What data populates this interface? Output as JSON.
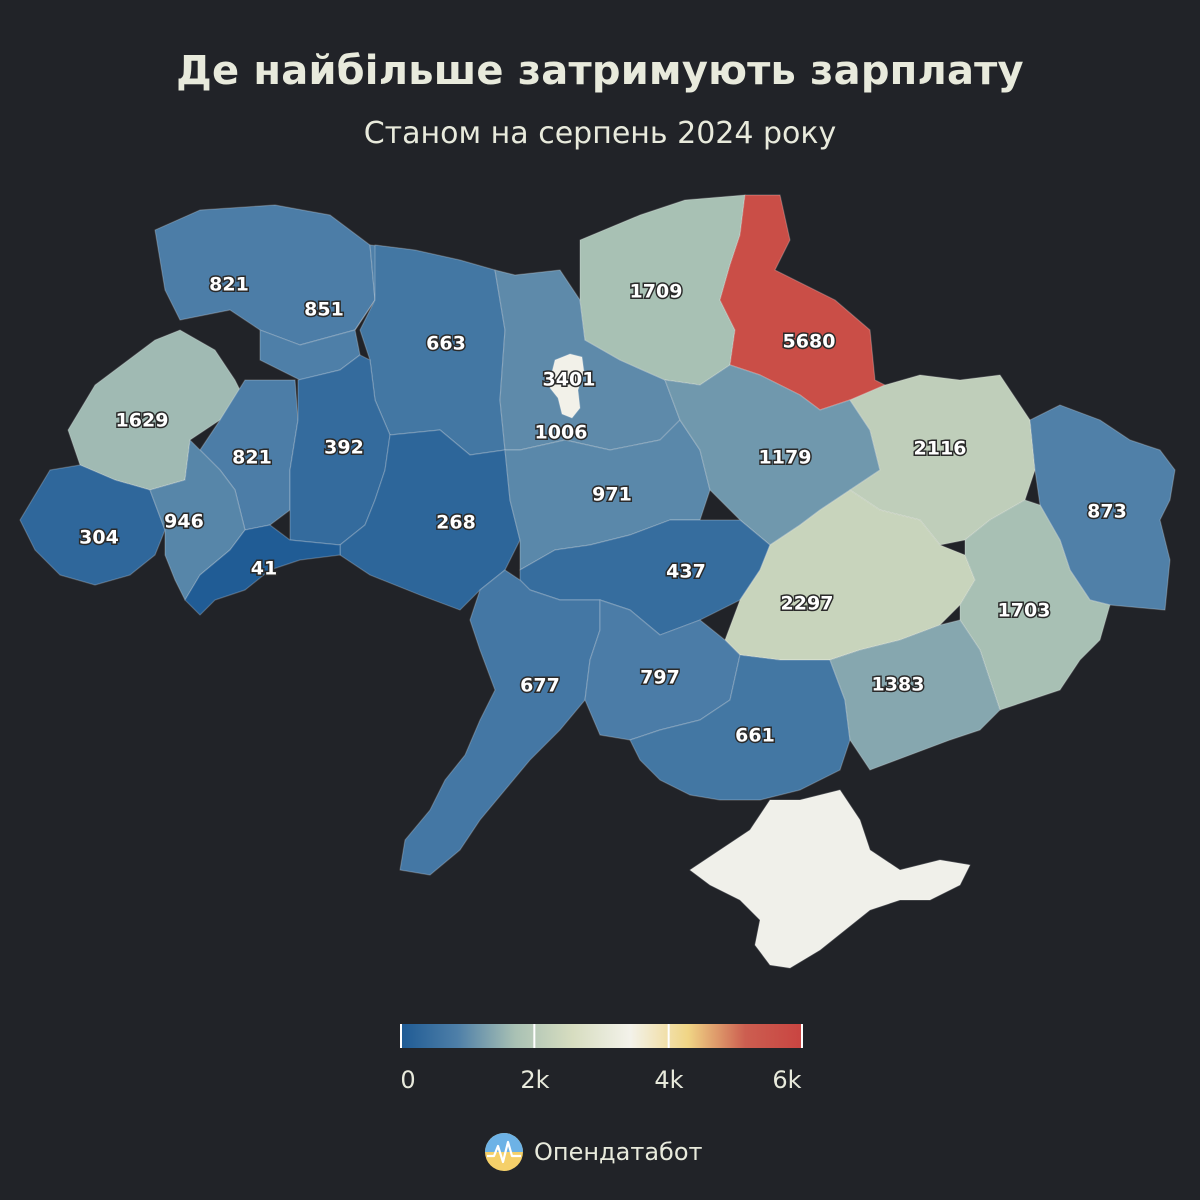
{
  "title": "Де найбільше затримують зарплату",
  "subtitle": "Станом на серпень 2024 року",
  "legend": {
    "ticks": [
      "0",
      "2k",
      "4k",
      "6k"
    ],
    "colors": [
      "#1e5a94",
      "#4e7fa8",
      "#a9c1b4",
      "#d7ddc0",
      "#f3f2ea",
      "#f0d585",
      "#cc5e50",
      "#c94441"
    ]
  },
  "brand": {
    "name": "Опендатабот",
    "icon": "opendatabot-logo-icon"
  },
  "chart_data": {
    "type": "choropleth",
    "scale_min": 0,
    "scale_max": 6000,
    "regions": [
      {
        "id": "volyn",
        "value": 821
      },
      {
        "id": "rivne",
        "value": 851
      },
      {
        "id": "zhytomyr",
        "value": 663
      },
      {
        "id": "kyiv-oblast",
        "value": 1006
      },
      {
        "id": "kyiv-city",
        "value": 3401
      },
      {
        "id": "chernihiv",
        "value": 1709
      },
      {
        "id": "sumy",
        "value": 5680
      },
      {
        "id": "lviv",
        "value": 1629
      },
      {
        "id": "ternopil",
        "value": 821
      },
      {
        "id": "khmelnytskyi",
        "value": 392
      },
      {
        "id": "vinnytsia",
        "value": 268
      },
      {
        "id": "cherkasy",
        "value": 971
      },
      {
        "id": "poltava",
        "value": 1179
      },
      {
        "id": "kharkiv",
        "value": 2116
      },
      {
        "id": "luhansk",
        "value": 873
      },
      {
        "id": "zakarpattia",
        "value": 304
      },
      {
        "id": "ivano-frankivsk",
        "value": 946
      },
      {
        "id": "chernivtsi",
        "value": 41
      },
      {
        "id": "kirovohrad",
        "value": 437
      },
      {
        "id": "dnipropetrovsk",
        "value": 2297
      },
      {
        "id": "donetsk",
        "value": 1703
      },
      {
        "id": "odesa",
        "value": 677
      },
      {
        "id": "mykolaiv",
        "value": 797
      },
      {
        "id": "kherson",
        "value": 661
      },
      {
        "id": "zaporizhzhia",
        "value": 1383
      },
      {
        "id": "crimea",
        "value": null
      }
    ]
  }
}
